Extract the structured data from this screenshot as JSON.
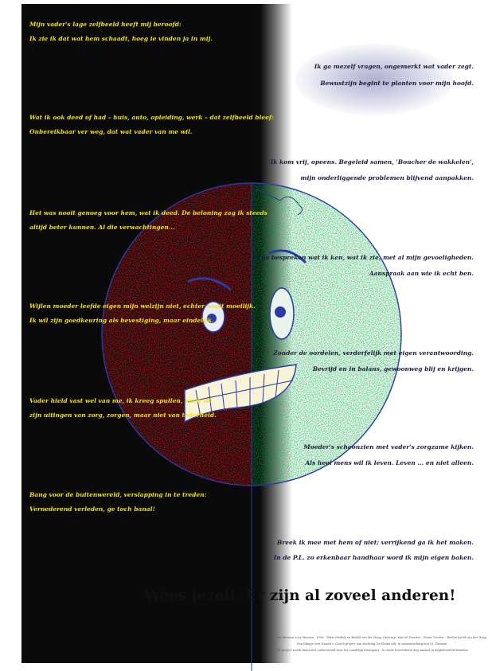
{
  "left_text": [
    "Mijn vader's lage zelfbeeld heeft mij beroofd:",
    "Ik zie ik dat wat hem schaadt, hoeg ie vinden ja in mij.",
    "Wat ik ook deed of had – huis, auto, opleiding, werk – dat zelfbeeld bleef:",
    "Onbereikbaar ver weg, dat wat vader van me wil.",
    "Het was nooit genoeg voor hem, wat ik deed. De beloning zag ik steeds",
    "altijd beter kunnen. Al die verwachtingen...",
    "Wijlen moeder leefde eigen mijn welzijn niet, echter nooit moeilijk.",
    "Ik wil zijn goedkeuring als bevestiging, maar eindelijk.",
    "Vader hield vast wel van me, ik kreeg spullen, maar de",
    "zijn uitingen van zorg, zorgen, maar niet van tederheid.",
    "Bang voor de buitenwereld, verslapping in te treden:",
    "Vernederend verleden, ge toch banal!"
  ],
  "right_text": [
    "Ik ga mezelf vragen, ongemerkt wat vader zegt.",
    "Bewustzijn begint te planten voor mijn hoofd.",
    "Ik kom vrij, opeens. Begeleid samen, 'Boucher de wakkelen',",
    "mijn onderliggende problemen blijvend aanpakken.",
    "Ik ga bespreken wat ik ken, wat ik zie, met al mijn gevoeligheden.",
    "Aanspraak aan wie ik echt ben.",
    "Zonder de oordelen, verderfelijk met eigen verantwoording.",
    "Bevrijd en in balans, gewoonweg blij en krijgen.",
    "Moeder's schoonzien met vader's zorgzame kijken.",
    "Als heel mens wil ik leven. Leven ... en niet alleen.",
    "Breek ik mee met hem of niet; verrijkend ga ik het maken.",
    "In de P.L. zo erkenbaar handhaar word ik mijn eigen baken."
  ],
  "slogan": "Wees jezelf. Er zijn al zoveel anderen!",
  "credits": [
    "Van Mensen voor Mensen - 1996 - Tekst Mediek en Beeldt van der Haag, Ontwerp: Marcel Poortier - Dieter Fischer - Realist beeld van der Haag",
    "Een filmpje over Kaaslo's. Coach project van stichting De Kleine ark, in samenwerking met M. Sluiman",
    "Dit project wordt financieel ondersteund door het Landelijk Steunpunt - In totale hoeveelheid dag aanbod in dagbehandeld Benelux"
  ],
  "colors": {
    "dark_half": "#0a0a0a",
    "left_text": "#f0e020",
    "right_text": "#1a1a3a",
    "face_red": "#ee1d24",
    "face_green": "#0aa53c",
    "outline": "#2a3aa6"
  }
}
